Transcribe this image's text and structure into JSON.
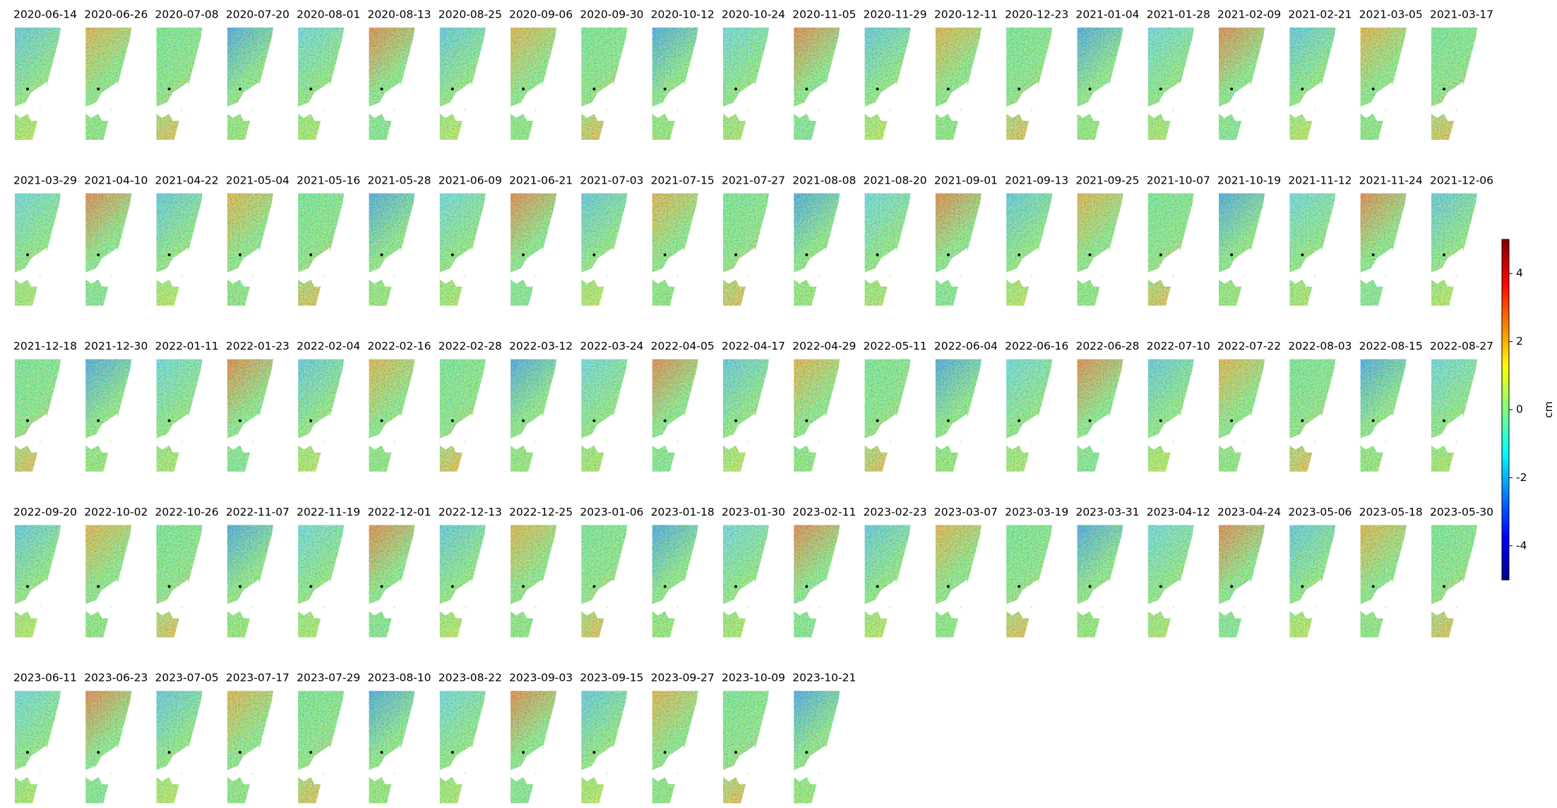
{
  "panels": [
    "2020-06-14",
    "2020-06-26",
    "2020-07-08",
    "2020-07-20",
    "2020-08-01",
    "2020-08-13",
    "2020-08-25",
    "2020-09-06",
    "2020-09-30",
    "2020-10-12",
    "2020-10-24",
    "2020-11-05",
    "2020-11-29",
    "2020-12-11",
    "2020-12-23",
    "2021-01-04",
    "2021-01-28",
    "2021-02-09",
    "2021-02-21",
    "2021-03-05",
    "2021-03-17",
    "2021-03-29",
    "2021-04-10",
    "2021-04-22",
    "2021-05-04",
    "2021-05-16",
    "2021-05-28",
    "2021-06-09",
    "2021-06-21",
    "2021-07-03",
    "2021-07-15",
    "2021-07-27",
    "2021-08-08",
    "2021-08-20",
    "2021-09-01",
    "2021-09-13",
    "2021-09-25",
    "2021-10-07",
    "2021-10-19",
    "2021-11-12",
    "2021-11-24",
    "2021-12-06",
    "2021-12-18",
    "2021-12-30",
    "2022-01-11",
    "2022-01-23",
    "2022-02-04",
    "2022-02-16",
    "2022-02-28",
    "2022-03-12",
    "2022-03-24",
    "2022-04-05",
    "2022-04-17",
    "2022-04-29",
    "2022-05-11",
    "2022-06-04",
    "2022-06-16",
    "2022-06-28",
    "2022-07-10",
    "2022-07-22",
    "2022-08-03",
    "2022-08-15",
    "2022-08-27",
    "2022-09-20",
    "2022-10-02",
    "2022-10-26",
    "2022-11-07",
    "2022-11-19",
    "2022-12-01",
    "2022-12-13",
    "2022-12-25",
    "2023-01-06",
    "2023-01-18",
    "2023-01-30",
    "2023-02-11",
    "2023-02-23",
    "2023-03-07",
    "2023-03-19",
    "2023-03-31",
    "2023-04-12",
    "2023-04-24",
    "2023-05-06",
    "2023-05-18",
    "2023-05-30",
    "2023-06-11",
    "2023-06-23",
    "2023-07-05",
    "2023-07-17",
    "2023-07-29",
    "2023-08-10",
    "2023-08-22",
    "2023-09-03",
    "2023-09-15",
    "2023-09-27",
    "2023-10-09",
    "2023-10-21"
  ],
  "colorbar": {
    "label": "cm",
    "lim": [
      -5,
      5
    ],
    "ticks": [
      -4,
      -2,
      0,
      2,
      4
    ]
  }
}
